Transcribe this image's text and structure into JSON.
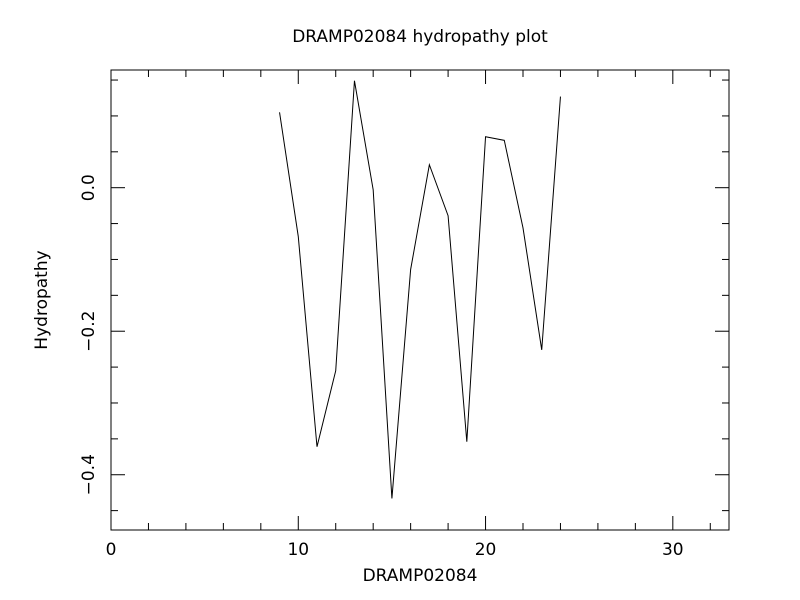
{
  "chart_data": {
    "type": "line",
    "title": "DRAMP02084 hydropathy plot",
    "x_label": "DRAMP02084",
    "y_label": "Hydropathy",
    "x": [
      9,
      10,
      11,
      12,
      13,
      14,
      15,
      16,
      17,
      18,
      19,
      20,
      21,
      22,
      23,
      24
    ],
    "values": [
      0.105,
      -0.068,
      -0.361,
      -0.255,
      0.149,
      -0.003,
      -0.433,
      -0.114,
      0.032,
      -0.039,
      -0.354,
      0.071,
      0.066,
      -0.056,
      -0.226,
      0.127
    ],
    "color": "#000000",
    "xlim": [
      0,
      33
    ],
    "xticks": [
      0,
      10,
      20,
      30
    ],
    "xminorticks": [
      2,
      4,
      6,
      8,
      12,
      14,
      16,
      18,
      22,
      24,
      26,
      28,
      32
    ],
    "ylim": [
      -0.477,
      0.164
    ],
    "yticks": [
      {
        "value": 0,
        "label": "0.0"
      },
      {
        "value": -0.2,
        "label": "−0.2"
      },
      {
        "value": -0.4,
        "label": "−0.4"
      }
    ],
    "yminorticks": [
      0.15,
      0.1,
      0.05,
      -0.05,
      -0.1,
      -0.15,
      -0.25,
      -0.3,
      -0.35,
      -0.45
    ]
  }
}
